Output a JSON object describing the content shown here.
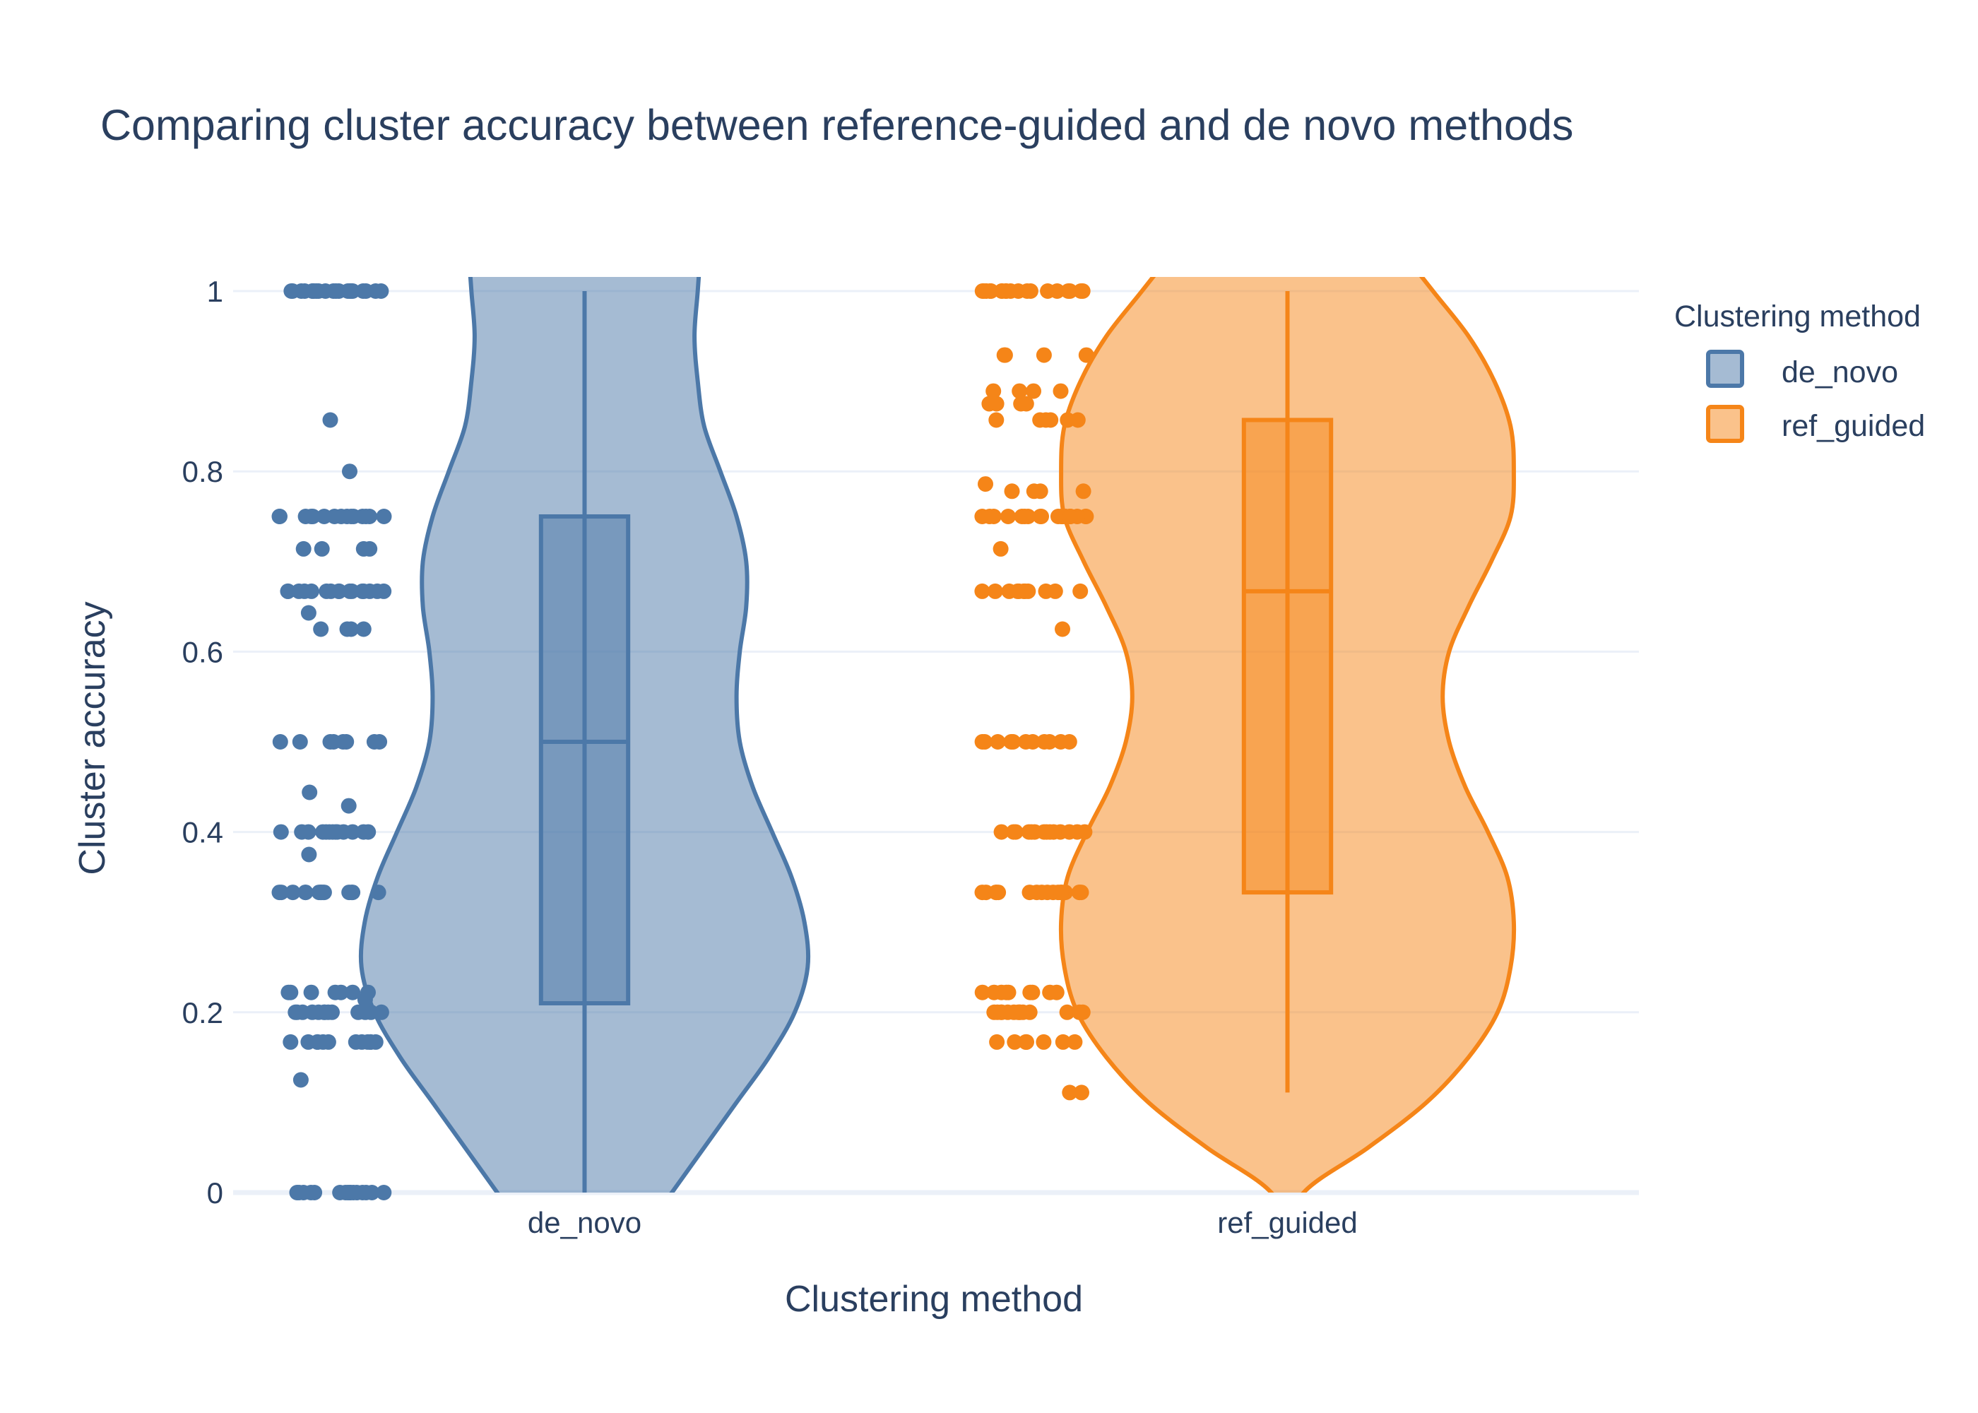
{
  "chart_data": {
    "type": "violin",
    "title": "Comparing cluster accuracy between reference-guided and de novo methods",
    "xlabel": "Clustering method",
    "ylabel": "Cluster accuracy",
    "categories": [
      "de_novo",
      "ref_guided"
    ],
    "ylim": [
      0,
      1
    ],
    "yticks": [
      0,
      0.2,
      0.4,
      0.6,
      0.8,
      1
    ],
    "ytick_labels": [
      "0",
      "0.2",
      "0.4",
      "0.6",
      "0.8",
      "1"
    ],
    "grid": true,
    "legend": {
      "title": "Clustering method",
      "placement": "top-right",
      "entries": [
        "de_novo",
        "ref_guided"
      ]
    },
    "points_shown": "all",
    "series": [
      {
        "name": "de_novo",
        "category": "de_novo",
        "color": "#4c78a8",
        "box": {
          "min": 0,
          "q1": 0.21,
          "median": 0.5,
          "q3": 0.75,
          "max": 1
        },
        "density": [
          [
            0.0,
            0.27
          ],
          [
            0.05,
            0.37
          ],
          [
            0.1,
            0.47
          ],
          [
            0.15,
            0.57
          ],
          [
            0.2,
            0.65
          ],
          [
            0.25,
            0.69
          ],
          [
            0.3,
            0.68
          ],
          [
            0.35,
            0.64
          ],
          [
            0.4,
            0.58
          ],
          [
            0.45,
            0.52
          ],
          [
            0.5,
            0.48
          ],
          [
            0.55,
            0.47
          ],
          [
            0.6,
            0.48
          ],
          [
            0.65,
            0.5
          ],
          [
            0.7,
            0.5
          ],
          [
            0.75,
            0.47
          ],
          [
            0.8,
            0.42
          ],
          [
            0.85,
            0.37
          ],
          [
            0.9,
            0.35
          ],
          [
            0.95,
            0.34
          ],
          [
            1.0,
            0.35
          ]
        ],
        "points": [
          0,
          0,
          0,
          0,
          0,
          0,
          0,
          0,
          0,
          0,
          0,
          0,
          0,
          0,
          0,
          0,
          0.125,
          0.167,
          0.167,
          0.167,
          0.167,
          0.167,
          0.167,
          0.167,
          0.167,
          0.167,
          0.167,
          0.167,
          0.167,
          0.2,
          0.2,
          0.2,
          0.2,
          0.2,
          0.2,
          0.2,
          0.2,
          0.2,
          0.2,
          0.2,
          0.2,
          0.2,
          0.214,
          0.222,
          0.222,
          0.222,
          0.222,
          0.222,
          0.222,
          0.222,
          0.333,
          0.333,
          0.333,
          0.333,
          0.333,
          0.333,
          0.333,
          0.333,
          0.333,
          0.333,
          0.333,
          0.333,
          0.333,
          0.333,
          0.375,
          0.4,
          0.4,
          0.4,
          0.4,
          0.4,
          0.4,
          0.4,
          0.4,
          0.4,
          0.4,
          0.4,
          0.4,
          0.4,
          0.429,
          0.444,
          0.5,
          0.5,
          0.5,
          0.5,
          0.5,
          0.5,
          0.5,
          0.5,
          0.625,
          0.625,
          0.625,
          0.625,
          0.643,
          0.667,
          0.667,
          0.667,
          0.667,
          0.667,
          0.667,
          0.667,
          0.667,
          0.667,
          0.667,
          0.667,
          0.667,
          0.667,
          0.667,
          0.667,
          0.667,
          0.714,
          0.714,
          0.714,
          0.714,
          0.75,
          0.75,
          0.75,
          0.75,
          0.75,
          0.75,
          0.75,
          0.75,
          0.75,
          0.75,
          0.75,
          0.75,
          0.75,
          0.75,
          0.75,
          0.8,
          0.857,
          1,
          1,
          1,
          1,
          1,
          1,
          1,
          1,
          1,
          1,
          1,
          1,
          1,
          1,
          1,
          1,
          1,
          1,
          1,
          1,
          1,
          1
        ]
      },
      {
        "name": "ref_guided",
        "category": "ref_guided",
        "color": "#f58518",
        "box": {
          "min": 0.111,
          "q1": 0.333,
          "median": 0.667,
          "q3": 0.857,
          "max": 1
        },
        "density": [
          [
            0.0,
            0.05
          ],
          [
            0.05,
            0.25
          ],
          [
            0.1,
            0.43
          ],
          [
            0.15,
            0.56
          ],
          [
            0.2,
            0.65
          ],
          [
            0.25,
            0.69
          ],
          [
            0.3,
            0.7
          ],
          [
            0.35,
            0.68
          ],
          [
            0.4,
            0.62
          ],
          [
            0.45,
            0.55
          ],
          [
            0.5,
            0.5
          ],
          [
            0.55,
            0.48
          ],
          [
            0.6,
            0.5
          ],
          [
            0.65,
            0.56
          ],
          [
            0.7,
            0.63
          ],
          [
            0.75,
            0.69
          ],
          [
            0.8,
            0.7
          ],
          [
            0.85,
            0.69
          ],
          [
            0.9,
            0.64
          ],
          [
            0.95,
            0.56
          ],
          [
            1.0,
            0.45
          ]
        ],
        "points": [
          0.111,
          0.111,
          0.167,
          0.167,
          0.167,
          0.167,
          0.167,
          0.167,
          0.167,
          0.167,
          0.2,
          0.2,
          0.2,
          0.2,
          0.2,
          0.2,
          0.2,
          0.2,
          0.2,
          0.2,
          0.2,
          0.2,
          0.2,
          0.2,
          0.222,
          0.222,
          0.222,
          0.222,
          0.222,
          0.222,
          0.222,
          0.222,
          0.222,
          0.333,
          0.333,
          0.333,
          0.333,
          0.333,
          0.333,
          0.333,
          0.333,
          0.333,
          0.333,
          0.333,
          0.333,
          0.333,
          0.333,
          0.333,
          0.333,
          0.333,
          0.333,
          0.4,
          0.4,
          0.4,
          0.4,
          0.4,
          0.4,
          0.4,
          0.4,
          0.4,
          0.4,
          0.4,
          0.4,
          0.4,
          0.4,
          0.5,
          0.5,
          0.5,
          0.5,
          0.5,
          0.5,
          0.5,
          0.5,
          0.5,
          0.5,
          0.5,
          0.625,
          0.667,
          0.667,
          0.667,
          0.667,
          0.667,
          0.667,
          0.667,
          0.667,
          0.667,
          0.667,
          0.667,
          0.714,
          0.75,
          0.75,
          0.75,
          0.75,
          0.75,
          0.75,
          0.75,
          0.75,
          0.75,
          0.75,
          0.75,
          0.75,
          0.75,
          0.75,
          0.75,
          0.75,
          0.75,
          0.75,
          0.75,
          0.75,
          0.778,
          0.778,
          0.778,
          0.778,
          0.786,
          0.857,
          0.857,
          0.857,
          0.857,
          0.857,
          0.857,
          0.875,
          0.875,
          0.875,
          0.875,
          0.889,
          0.889,
          0.889,
          0.889,
          0.929,
          0.929,
          0.929,
          0.929,
          1,
          1,
          1,
          1,
          1,
          1,
          1,
          1,
          1,
          1,
          1,
          1,
          1,
          1,
          1,
          1,
          1,
          1,
          1,
          1
        ]
      }
    ]
  }
}
